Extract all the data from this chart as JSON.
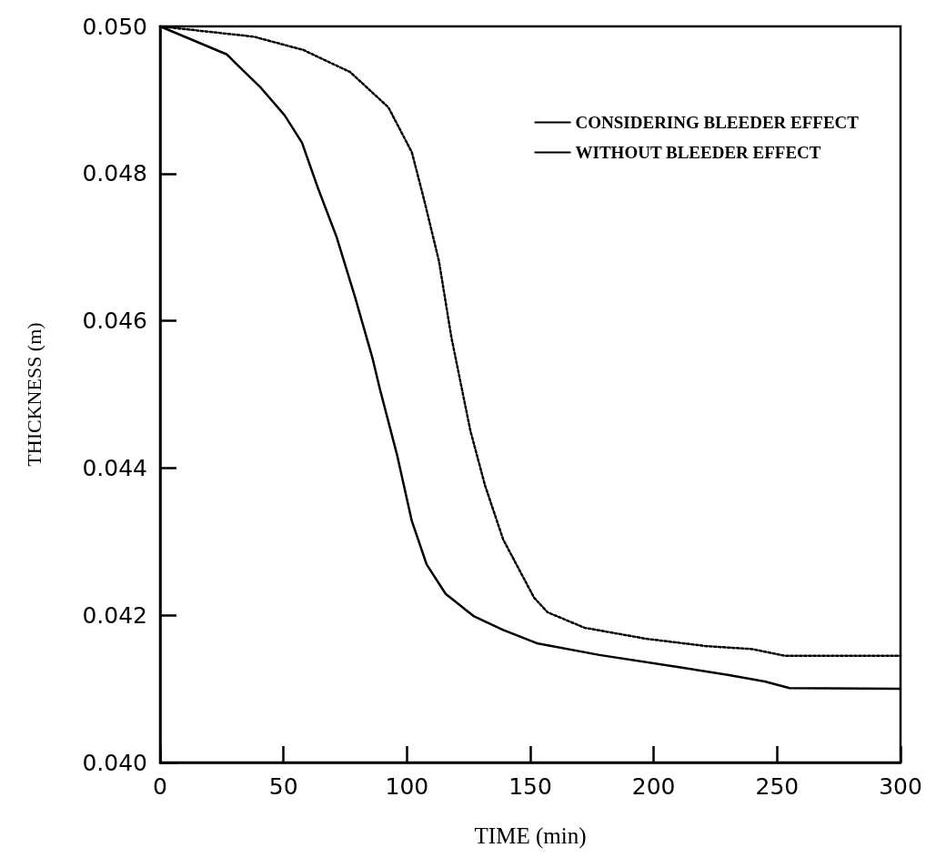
{
  "chart_data": {
    "type": "line",
    "xlabel": "TIME (min)",
    "ylabel": "THICKNESS (m)",
    "xlim": [
      0,
      300
    ],
    "xticks": [
      0,
      50,
      100,
      150,
      200,
      250,
      300
    ],
    "ylim": [
      0.04,
      0.05
    ],
    "yticks": [
      {
        "value": 0.04,
        "label": "0.040"
      },
      {
        "value": 0.042,
        "label": "0.042"
      },
      {
        "value": 0.044,
        "label": "0.044"
      },
      {
        "value": 0.046,
        "label": "0.046"
      },
      {
        "value": 0.048,
        "label": "0.048"
      },
      {
        "value": 0.05,
        "label": "0.050"
      }
    ],
    "grid": false,
    "legend": "top right",
    "marker": "none",
    "series": [
      {
        "name": "CONSIDERING BLEEDER EFFECT",
        "color": "#000000",
        "line_style": "dotted",
        "x": [
          0,
          38,
          58,
          77,
          92.5,
          102,
          107,
          113,
          118,
          125.7,
          131.6,
          139,
          151.5,
          157,
          172,
          197,
          221.5,
          240,
          253,
          300
        ],
        "values": [
          0.05,
          0.04986,
          0.04968,
          0.04938,
          0.0489,
          0.04829,
          0.04764,
          0.04681,
          0.04578,
          0.04451,
          0.04377,
          0.04303,
          0.04224,
          0.04204,
          0.04183,
          0.04168,
          0.04158,
          0.04154,
          0.04145,
          0.04145
        ]
      },
      {
        "name": "WITHOUT BLEEDER EFFECT",
        "color": "#000000",
        "line_style": "solid",
        "x": [
          0,
          27,
          41,
          50.5,
          57.5,
          64,
          71.5,
          79,
          86,
          89,
          96,
          102,
          108,
          115.7,
          127,
          139,
          152.6,
          178,
          209,
          230,
          245,
          255,
          300
        ],
        "values": [
          0.05,
          0.04962,
          0.04916,
          0.04879,
          0.04842,
          0.0478,
          0.04714,
          0.04632,
          0.0455,
          0.04508,
          0.04418,
          0.04328,
          0.04269,
          0.04229,
          0.04199,
          0.0418,
          0.04162,
          0.04146,
          0.0413,
          0.04119,
          0.0411,
          0.04101,
          0.041
        ]
      }
    ]
  }
}
